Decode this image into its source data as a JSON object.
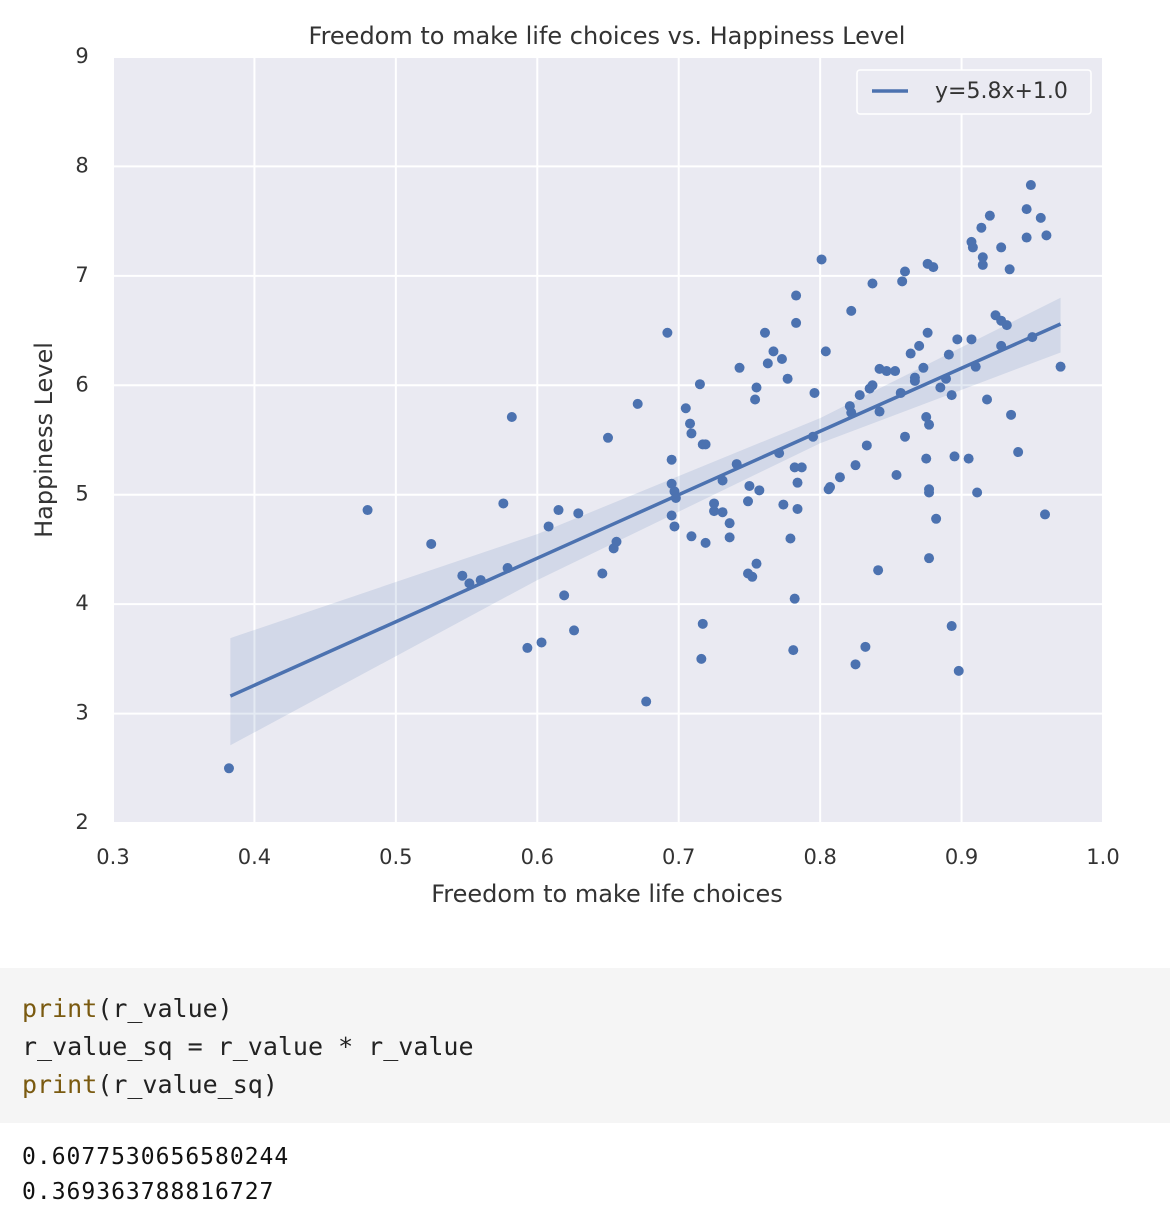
{
  "chart_data": {
    "type": "scatter",
    "title": "Freedom to make life choices vs. Happiness Level",
    "x_label": "Freedom to make life choices",
    "y_label": "Happiness Level",
    "color": "#4c72b0",
    "grid": true,
    "legend": "upper right",
    "xlim": [
      0.3,
      1.0
    ],
    "xticks": [
      0.3,
      0.4,
      0.5,
      0.6,
      0.7,
      0.8,
      0.9,
      {
        "value": 1.0,
        "label": "1.0"
      }
    ],
    "ylim": [
      2,
      9
    ],
    "yticks": [
      2,
      3,
      4,
      5,
      6,
      7,
      8,
      9
    ],
    "x": [
      0.382,
      0.48,
      0.525,
      0.547,
      0.552,
      0.56,
      0.576,
      0.579,
      0.582,
      0.593,
      0.603,
      0.608,
      0.615,
      0.619,
      0.626,
      0.629,
      0.646,
      0.65,
      0.654,
      0.656,
      0.671,
      0.677,
      0.692,
      0.695,
      0.695,
      0.695,
      0.697,
      0.697,
      0.698,
      0.705,
      0.708,
      0.709,
      0.709,
      0.715,
      0.717,
      0.719,
      0.717,
      0.716,
      0.719,
      0.725,
      0.725,
      0.731,
      0.731,
      0.736,
      0.736,
      0.741,
      0.743,
      0.749,
      0.75,
      0.749,
      0.752,
      0.755,
      0.754,
      0.755,
      0.757,
      0.761,
      0.763,
      0.767,
      0.771,
      0.773,
      0.774,
      0.777,
      0.779,
      0.781,
      0.782,
      0.782,
      0.783,
      0.783,
      0.784,
      0.784,
      0.787,
      0.795,
      0.796,
      0.801,
      0.804,
      0.806,
      0.807,
      0.814,
      0.822,
      0.821,
      0.822,
      0.825,
      0.825,
      0.828,
      0.832,
      0.833,
      0.835,
      0.837,
      0.837,
      0.841,
      0.842,
      0.842,
      0.847,
      0.853,
      0.854,
      0.857,
      0.858,
      0.86,
      0.86,
      0.864,
      0.867,
      0.867,
      0.87,
      0.873,
      0.875,
      0.876,
      0.875,
      0.876,
      0.877,
      0.877,
      0.877,
      0.877,
      0.88,
      0.882,
      0.885,
      0.889,
      0.891,
      0.893,
      0.893,
      0.895,
      0.897,
      0.898,
      0.905,
      0.907,
      0.907,
      0.908,
      0.91,
      0.911,
      0.914,
      0.915,
      0.915,
      0.918,
      0.92,
      0.924,
      0.928,
      0.928,
      0.928,
      0.932,
      0.934,
      0.935,
      0.94,
      0.946,
      0.946,
      0.949,
      0.95,
      0.956,
      0.959,
      0.96,
      0.97
    ],
    "values": [
      2.5,
      4.86,
      4.55,
      4.26,
      4.19,
      4.22,
      4.92,
      4.33,
      5.71,
      3.6,
      3.65,
      4.71,
      4.86,
      4.08,
      3.76,
      4.83,
      4.28,
      5.52,
      4.51,
      4.57,
      5.83,
      3.11,
      6.48,
      5.32,
      5.1,
      4.81,
      4.71,
      5.03,
      4.97,
      5.79,
      5.65,
      5.56,
      4.62,
      6.01,
      5.46,
      5.46,
      3.82,
      3.5,
      4.56,
      4.92,
      4.85,
      4.84,
      5.13,
      4.74,
      4.61,
      5.28,
      6.16,
      4.94,
      5.08,
      4.28,
      4.25,
      4.37,
      5.87,
      5.98,
      5.04,
      6.48,
      6.2,
      6.31,
      5.38,
      6.24,
      4.91,
      6.06,
      4.6,
      3.58,
      4.05,
      5.25,
      6.82,
      6.57,
      4.87,
      5.11,
      5.25,
      5.53,
      5.93,
      7.15,
      6.31,
      5.05,
      5.07,
      5.16,
      6.68,
      5.81,
      5.75,
      3.45,
      5.27,
      5.91,
      3.61,
      5.45,
      5.97,
      6.0,
      6.93,
      4.31,
      5.76,
      6.15,
      6.13,
      6.13,
      5.18,
      5.93,
      6.95,
      7.04,
      5.53,
      6.29,
      6.07,
      6.04,
      6.36,
      6.16,
      5.33,
      7.11,
      5.71,
      6.48,
      5.64,
      5.05,
      5.02,
      4.42,
      7.08,
      4.78,
      5.98,
      6.06,
      6.28,
      5.91,
      3.8,
      5.35,
      6.42,
      3.39,
      5.33,
      6.42,
      7.31,
      7.26,
      6.17,
      5.02,
      7.44,
      7.17,
      7.1,
      5.87,
      7.55,
      6.64,
      7.26,
      6.59,
      6.36,
      6.55,
      7.06,
      5.73,
      5.39,
      7.35,
      7.61,
      7.83,
      6.44,
      7.53,
      4.82,
      7.37,
      6.17
    ],
    "fit": {
      "name": "y=5.8x+1.0",
      "color": "#4c72b0",
      "x": [
        0.383,
        0.6,
        0.8,
        0.97
      ],
      "values": [
        3.16,
        4.42,
        5.58,
        6.56
      ],
      "ci_lower": [
        2.71,
        4.22,
        5.47,
        6.3
      ],
      "ci_upper": [
        3.69,
        4.64,
        5.7,
        6.8
      ]
    }
  },
  "code": {
    "lines": [
      [
        "print",
        "(r_value)"
      ],
      [
        "r_value_sq = r_value * r_value"
      ],
      [
        "print",
        "(r_value_sq)"
      ]
    ]
  },
  "output": [
    "0.6077530656580244",
    "0.369363788816727"
  ]
}
